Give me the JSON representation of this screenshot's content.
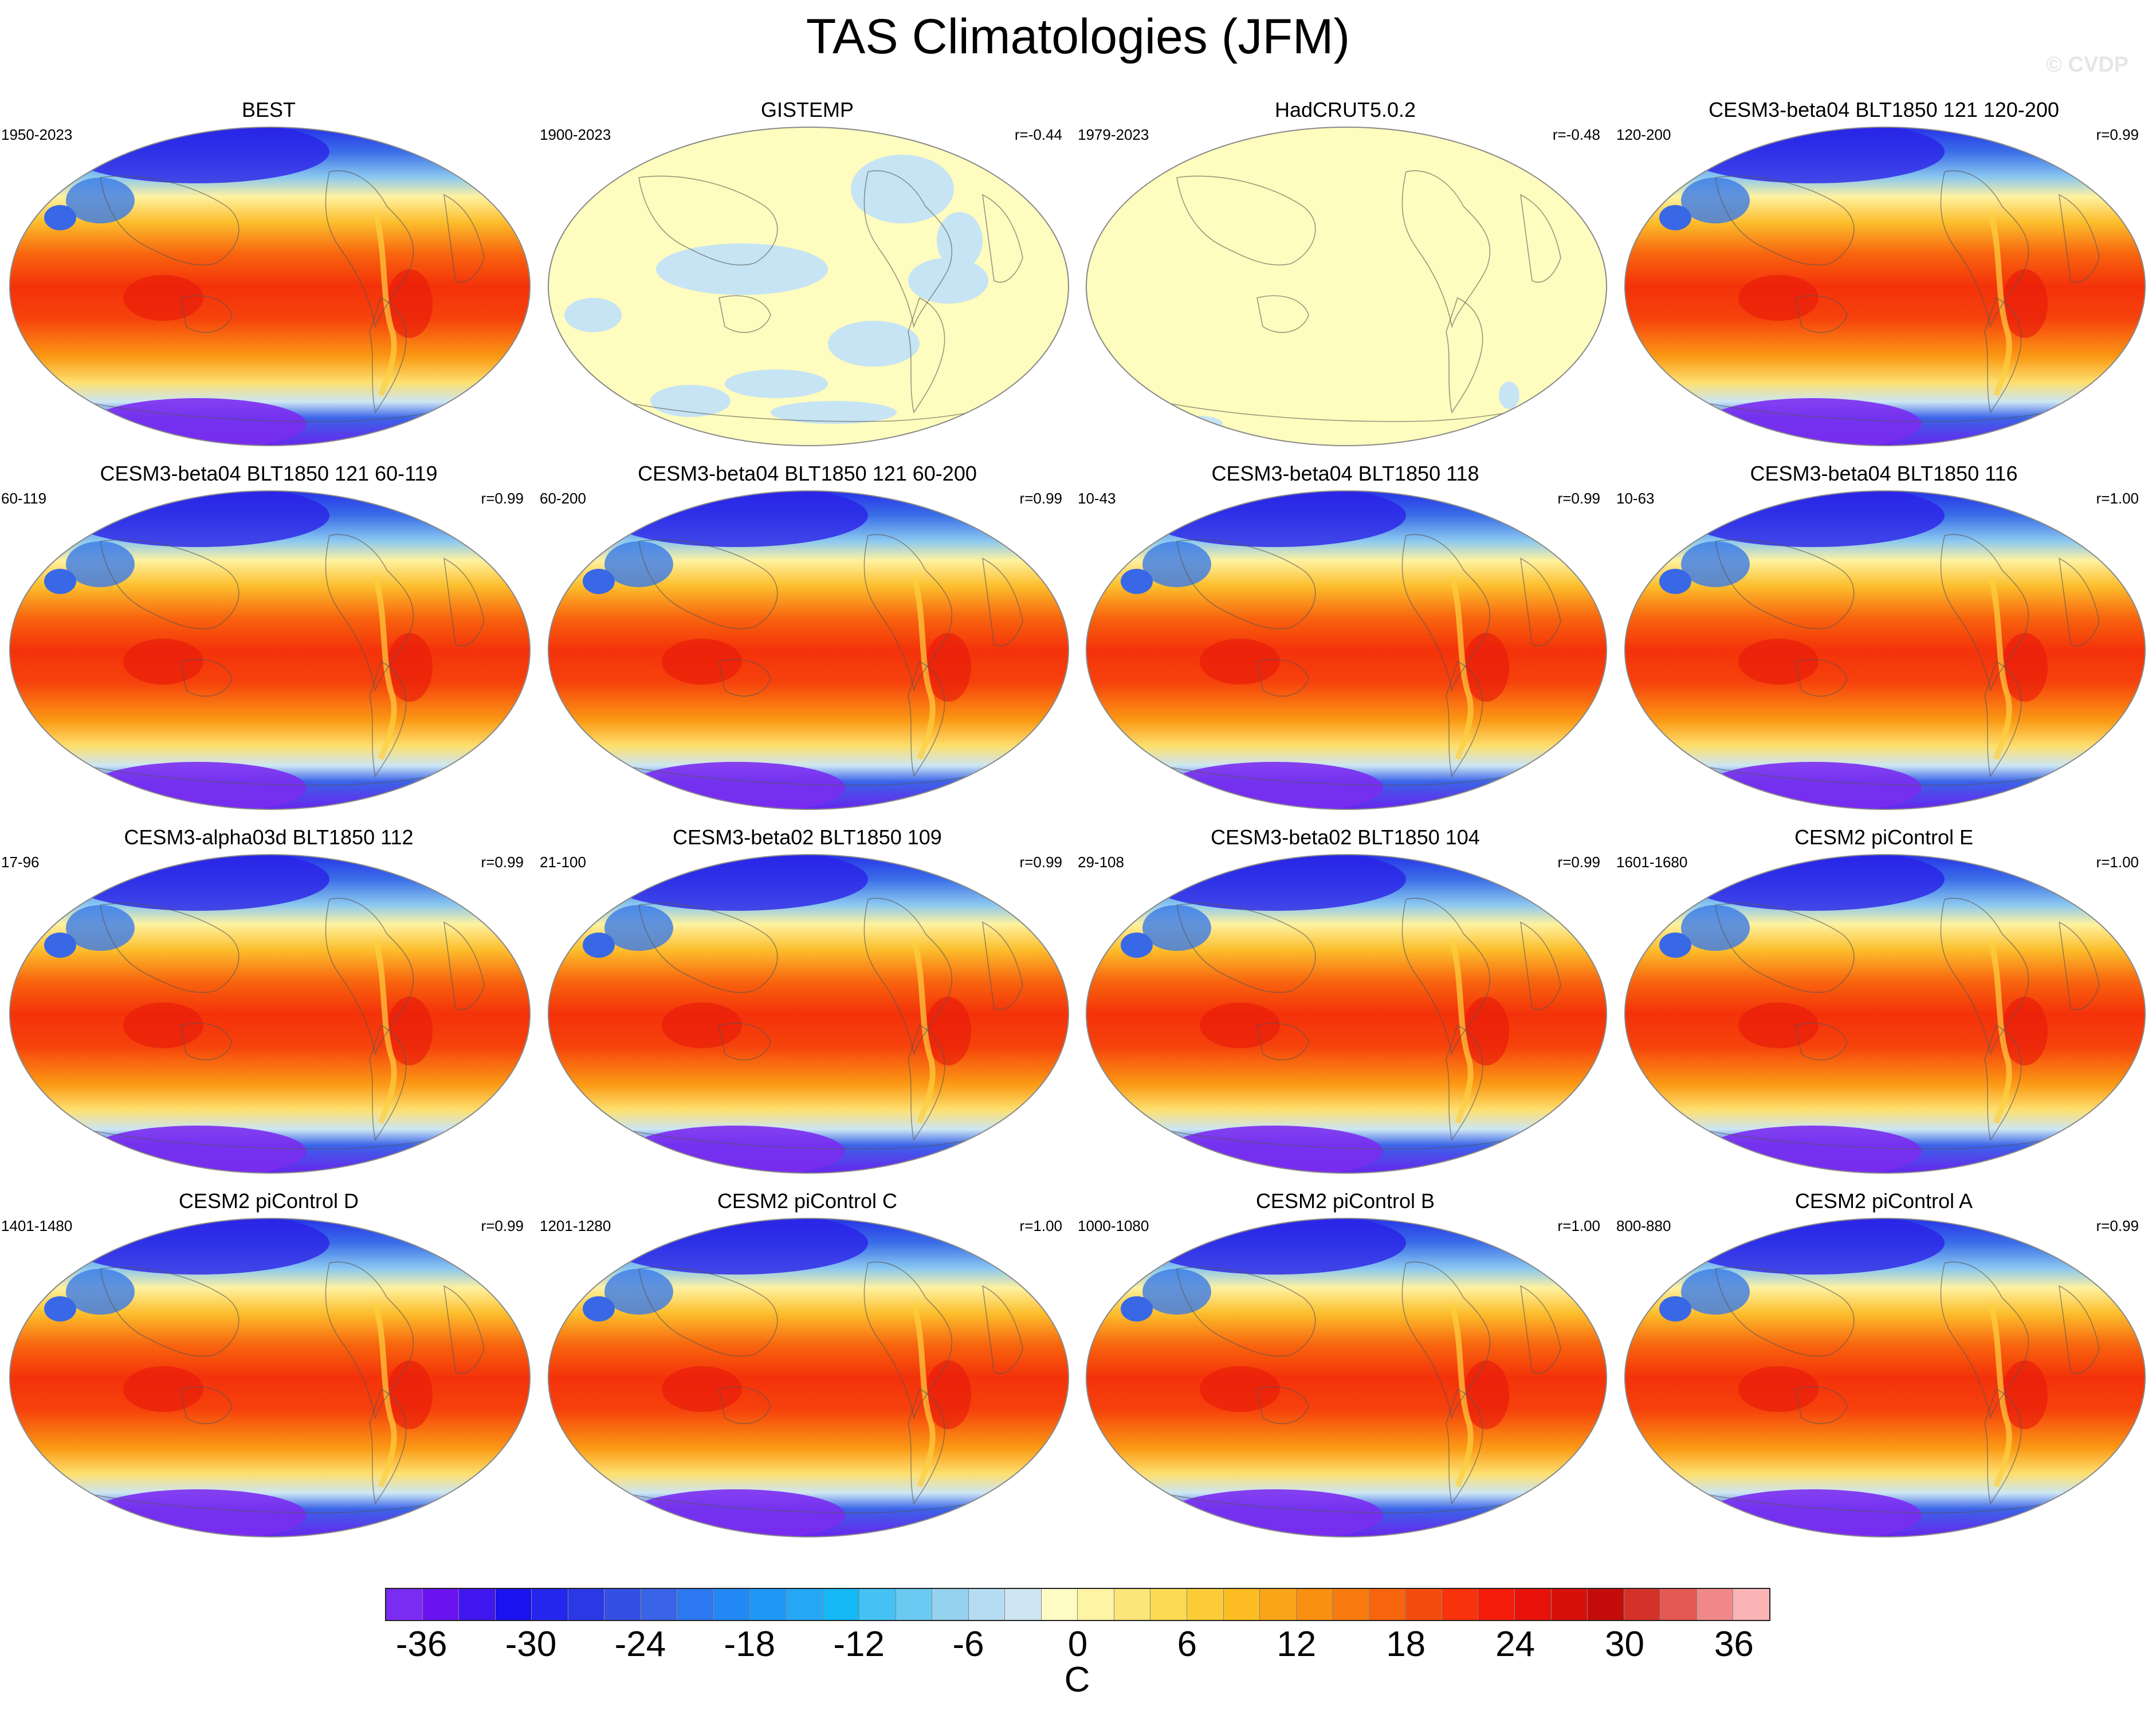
{
  "title": "TAS Climatologies (JFM)",
  "watermark": "© CVDP",
  "panels": [
    {
      "title": "BEST",
      "years": "1950-2023",
      "r": "",
      "style": "model"
    },
    {
      "title": "GISTEMP",
      "years": "1900-2023",
      "r": "r=-0.44",
      "style": "anomaly"
    },
    {
      "title": "HadCRUT5.0.2",
      "years": "1979-2023",
      "r": "r=-0.48",
      "style": "flat"
    },
    {
      "title": "CESM3-beta04 BLT1850 121 120-200",
      "years": "120-200",
      "r": "r=0.99",
      "style": "model"
    },
    {
      "title": "CESM3-beta04 BLT1850 121 60-119",
      "years": "60-119",
      "r": "r=0.99",
      "style": "model"
    },
    {
      "title": "CESM3-beta04 BLT1850 121 60-200",
      "years": "60-200",
      "r": "r=0.99",
      "style": "model"
    },
    {
      "title": "CESM3-beta04 BLT1850 118",
      "years": "10-43",
      "r": "r=0.99",
      "style": "model"
    },
    {
      "title": "CESM3-beta04 BLT1850 116",
      "years": "10-63",
      "r": "r=1.00",
      "style": "model"
    },
    {
      "title": "CESM3-alpha03d BLT1850 112",
      "years": "17-96",
      "r": "r=0.99",
      "style": "model"
    },
    {
      "title": "CESM3-beta02 BLT1850 109",
      "years": "21-100",
      "r": "r=0.99",
      "style": "model"
    },
    {
      "title": "CESM3-beta02 BLT1850 104",
      "years": "29-108",
      "r": "r=0.99",
      "style": "model"
    },
    {
      "title": "CESM2 piControl E",
      "years": "1601-1680",
      "r": "r=1.00",
      "style": "model"
    },
    {
      "title": "CESM2 piControl D",
      "years": "1401-1480",
      "r": "r=0.99",
      "style": "model"
    },
    {
      "title": "CESM2 piControl C",
      "years": "1201-1280",
      "r": "r=1.00",
      "style": "model"
    },
    {
      "title": "CESM2 piControl B",
      "years": "1000-1080",
      "r": "r=1.00",
      "style": "model"
    },
    {
      "title": "CESM2 piControl A",
      "years": "800-880",
      "r": "r=0.99",
      "style": "model"
    }
  ],
  "colorbar": {
    "unit": "C",
    "ticks": [
      "-36",
      "-30",
      "-24",
      "-18",
      "-12",
      "-6",
      "0",
      "6",
      "12",
      "18",
      "24",
      "30",
      "36"
    ],
    "colors": [
      "#7a2cf2",
      "#6a12f0",
      "#3f16ee",
      "#1a12ef",
      "#2426ee",
      "#2a38e6",
      "#3450e4",
      "#3a64e8",
      "#2c78f0",
      "#2288f4",
      "#1e98f6",
      "#24a8f6",
      "#14b8f4",
      "#44c2f4",
      "#6acaf2",
      "#94d2ee",
      "#b6dcf2",
      "#cee6f2",
      "#fefcc4",
      "#fef4a4",
      "#fce67a",
      "#fcda54",
      "#fccc36",
      "#fcbc22",
      "#fca418",
      "#fa9010",
      "#f87a0e",
      "#f6640c",
      "#f44c0c",
      "#f8320a",
      "#f61c0a",
      "#e8120a",
      "#d8100a",
      "#c40c0a",
      "#d43228",
      "#e45852",
      "#f0888a",
      "#fab4b6"
    ],
    "colors_meaning": "38 discrete contour levels, -38 to 38 C in 2 C steps"
  }
}
